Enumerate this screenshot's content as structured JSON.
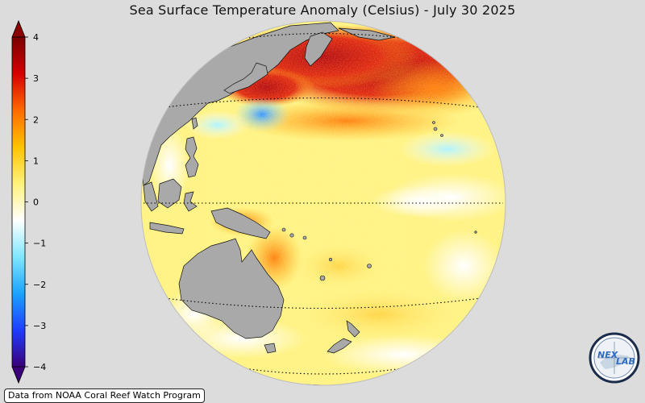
{
  "title": "Sea Surface Temperature Anomaly (Celsius) - July 30 2025",
  "credit": "Data from NOAA Coral Reef Watch Program",
  "colorbar": {
    "min": -4,
    "max": 4,
    "ticks": [
      "4",
      "3",
      "2",
      "1",
      "0",
      "−1",
      "−2",
      "−3",
      "−4"
    ],
    "extend": "both",
    "colors": [
      "#3a007a",
      "#1f3cff",
      "#1aa3ff",
      "#7fe7ff",
      "#ffffff",
      "#fff27a",
      "#ffc200",
      "#ff6a00",
      "#d40000",
      "#7a0000"
    ]
  },
  "globe": {
    "projection": "orthographic",
    "center": "Western/Central Pacific",
    "land_color": "#a9a9a9",
    "ocean_palette": "anomaly colormap"
  },
  "logo": {
    "text_left": "NEX",
    "text_right": "LAB"
  }
}
